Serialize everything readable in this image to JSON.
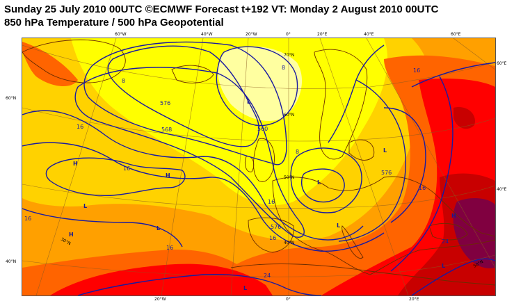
{
  "title": {
    "line1": "Sunday 25 July 2010 00UTC ©ECMWF Forecast t+192 VT: Monday 2 August 2010 00UTC",
    "line2": "850 hPa Temperature / 500 hPa Geopotential"
  },
  "top_edge_labels": [
    "60°W",
    "40°W",
    "20°W",
    "0°",
    "20°E",
    "40°E",
    "60°E"
  ],
  "bottom_edge_labels": [
    "20°W",
    "0°",
    "20°E"
  ],
  "left_edge_labels": [
    "60°N",
    "40°N"
  ],
  "right_edge_labels": [
    "60°E",
    "40°E"
  ],
  "inner_lat_labels": [
    "70°N",
    "60°N",
    "50°N",
    "40°N",
    "30°N",
    "50°N"
  ],
  "temperature_labels": [
    "8",
    "16",
    "16",
    "16",
    "8",
    "8",
    "16",
    "16",
    "24",
    "16",
    "24",
    "16",
    "16"
  ],
  "geopotential_labels": [
    "576",
    "568",
    "560",
    "576",
    "576"
  ],
  "pressure_marks": [
    "H",
    "H",
    "L",
    "L",
    "L",
    "H",
    "L",
    "L",
    "L",
    "H",
    "L",
    "L"
  ],
  "colors": {
    "very_cold_zone": "#ffffa0",
    "cold_zone": "#ffff00",
    "cool_zone": "#ffd200",
    "mild_zone": "#ffa000",
    "warm_zone": "#ff6400",
    "hot_zone": "#ff0000",
    "very_hot_zone": "#c80000",
    "extreme_zone": "#800040",
    "contour": "#1a1aa0",
    "coastline": "#6b2c00",
    "graticule": "#8a5a20"
  }
}
